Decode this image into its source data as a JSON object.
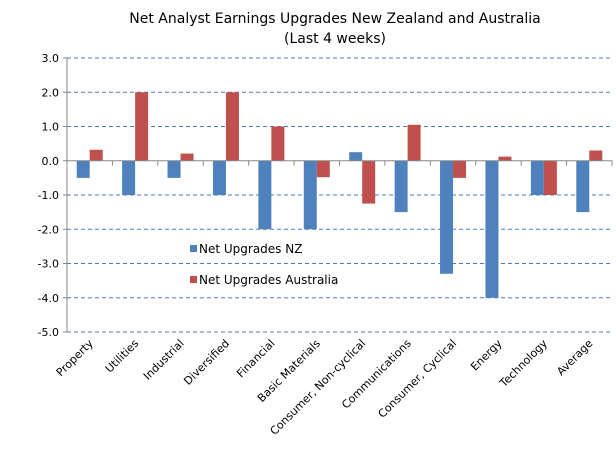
{
  "chart_data": {
    "type": "bar",
    "title": "Net Analyst Earnings Upgrades New Zealand and Australia",
    "subtitle": "(Last 4 weeks)",
    "xlabel": "",
    "ylabel": "",
    "ylim": [
      -5.0,
      3.0
    ],
    "yticks": [
      "3.0",
      "2.0",
      "1.0",
      "0.0",
      "-1.0",
      "-2.0",
      "-3.0",
      "-4.0",
      "-5.0"
    ],
    "ytick_values": [
      3,
      2,
      1,
      0,
      -1,
      -2,
      -3,
      -4,
      -5
    ],
    "grid": true,
    "legend_position": "center-left",
    "categories": [
      "Property",
      "Utilities",
      "Industrial",
      "Diversified",
      "Financial",
      "Basic Materials",
      "Consumer, Non-cyclical",
      "Communications",
      "Consumer, Cyclical",
      "Energy",
      "Technology",
      "Average"
    ],
    "series": [
      {
        "name": "Net Upgrades NZ",
        "color": "#4f81bd",
        "values": [
          -0.5,
          -1.0,
          -0.5,
          -1.0,
          -2.0,
          -2.0,
          0.25,
          -1.5,
          -3.3,
          -4.0,
          -1.0,
          -1.5
        ]
      },
      {
        "name": "Net Upgrades  Australia",
        "color": "#c0504d",
        "values": [
          0.32,
          2.0,
          0.21,
          2.0,
          1.0,
          -0.48,
          -1.25,
          1.05,
          -0.5,
          0.12,
          -1.0,
          0.3
        ]
      }
    ]
  }
}
